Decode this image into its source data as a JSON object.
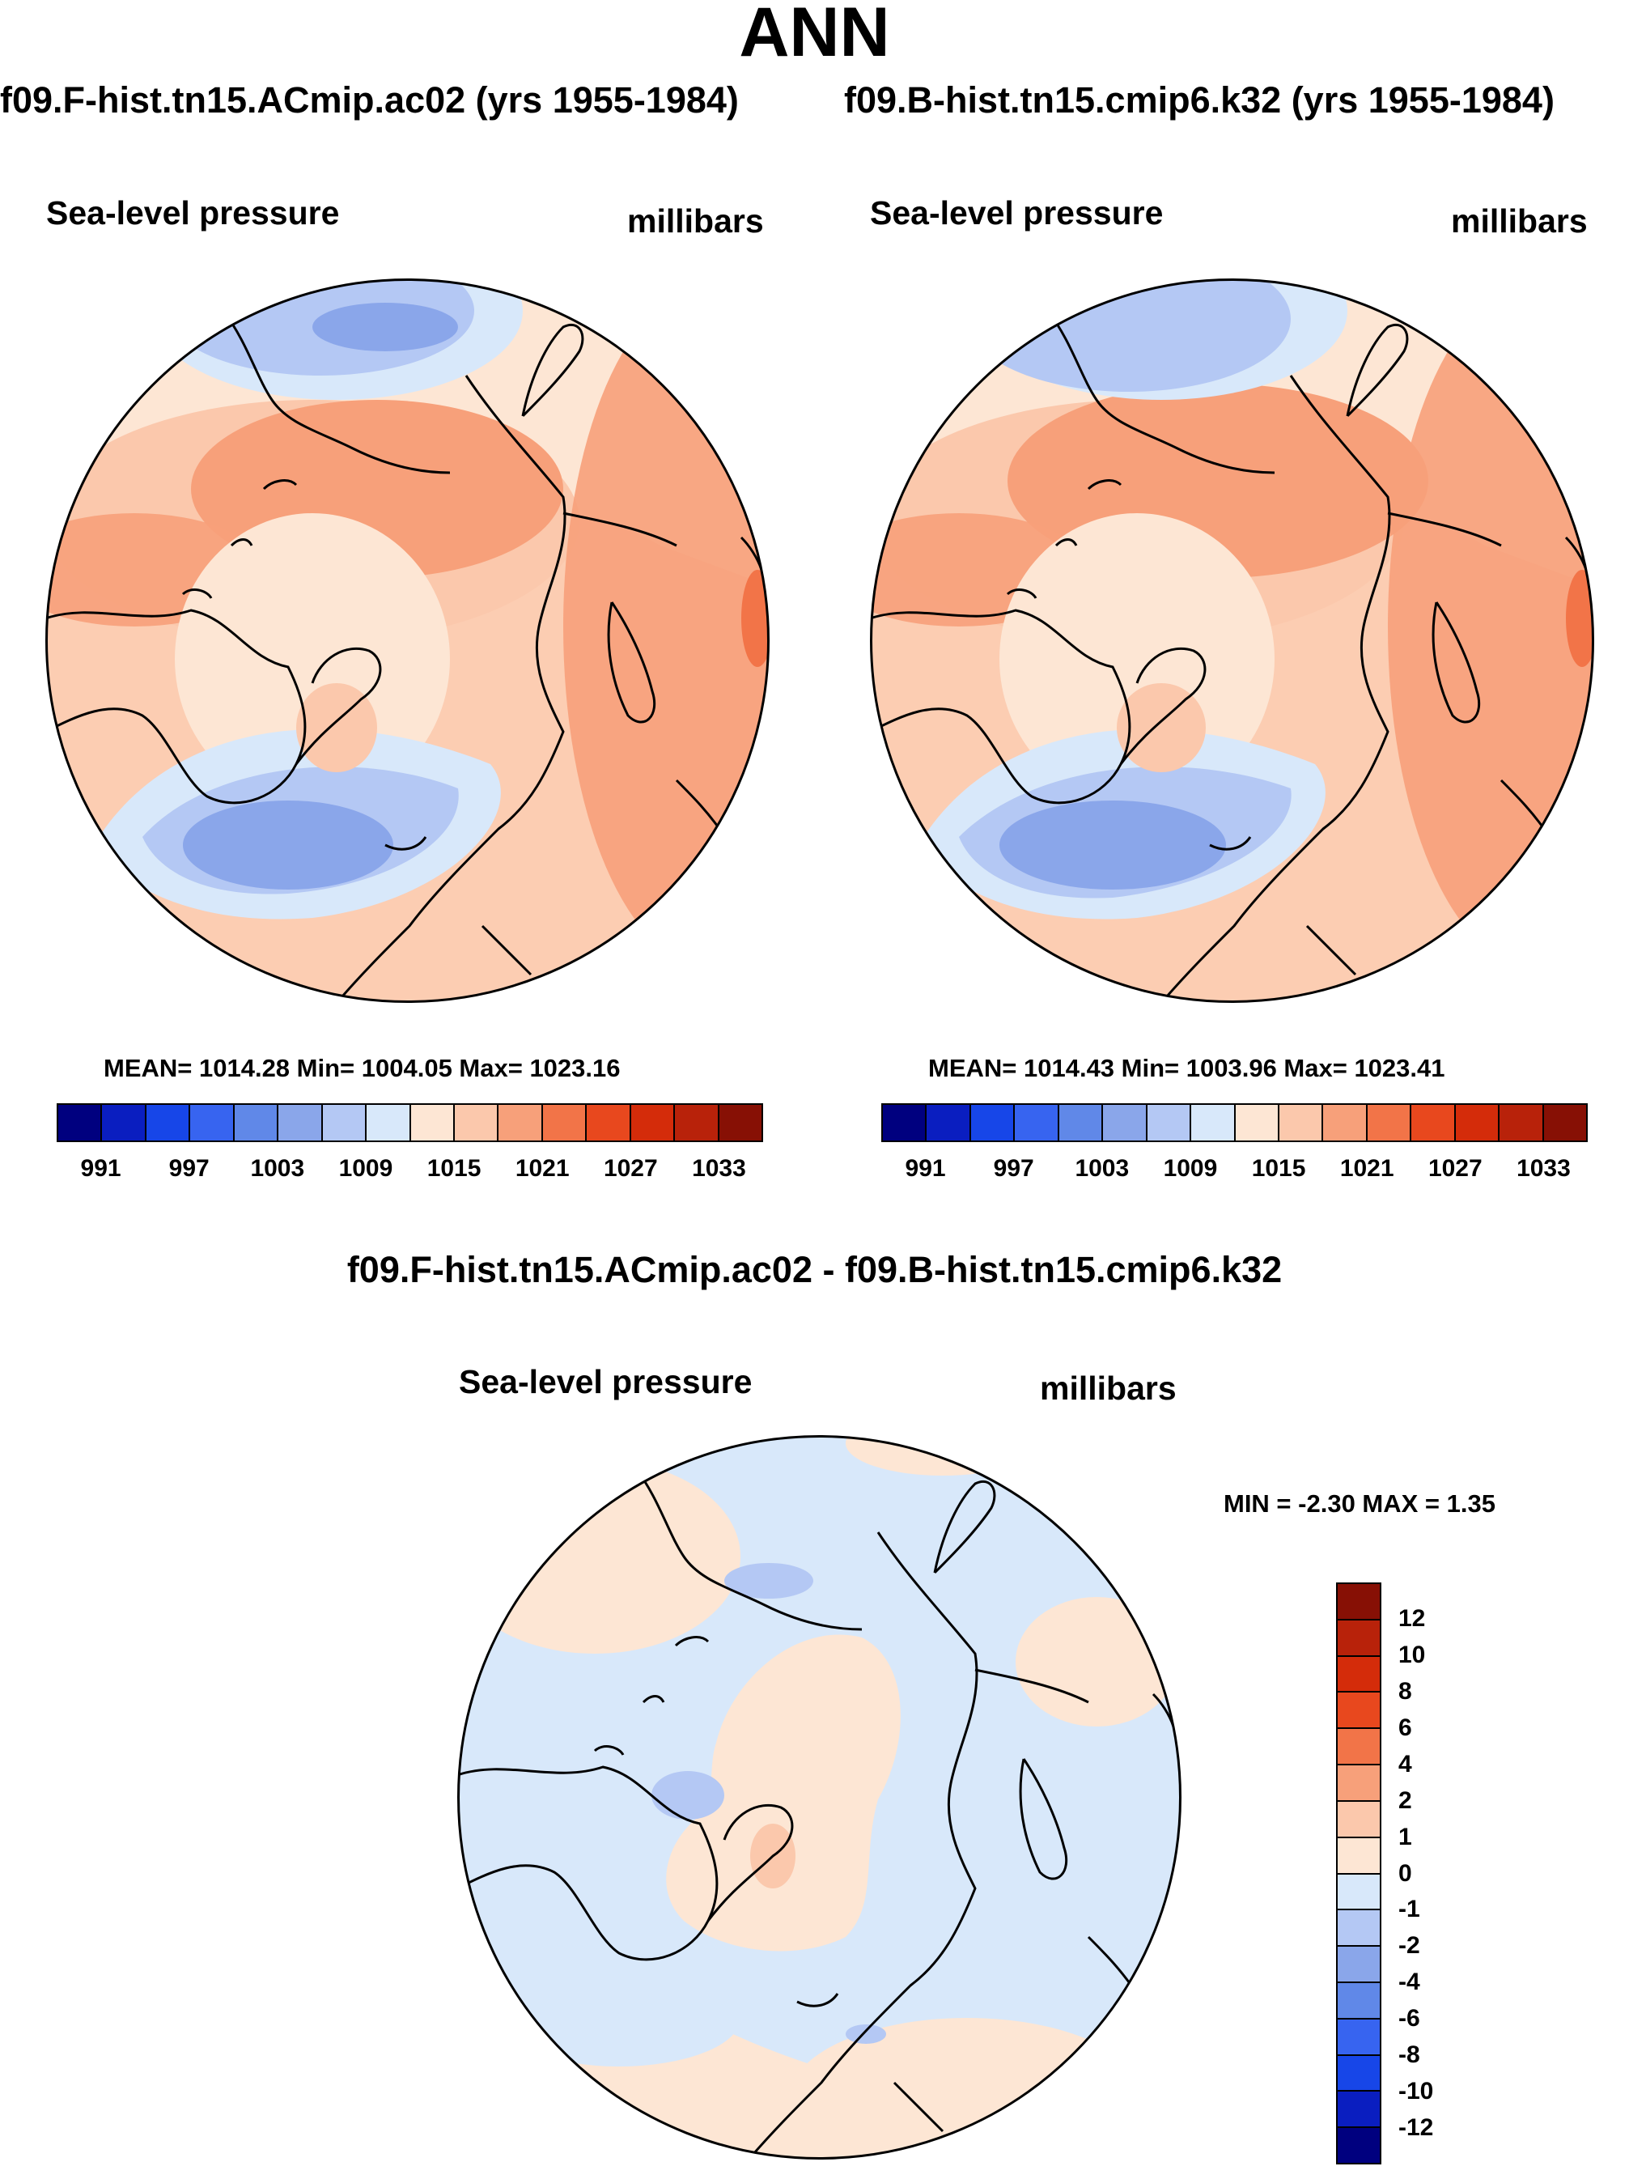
{
  "title": "ANN",
  "left_panel": {
    "case_title": "f09.F-hist.tn15.ACmip.ac02 (yrs 1955-1984)",
    "field": "Sea-level pressure",
    "units": "millibars",
    "stats": "MEAN= 1014.28  Min= 1004.05  Max= 1023.16"
  },
  "right_panel": {
    "case_title": "f09.B-hist.tn15.cmip6.k32 (yrs 1955-1984)",
    "field": "Sea-level pressure",
    "units": "millibars",
    "stats": "MEAN= 1014.43  Min= 1003.96  Max= 1023.41"
  },
  "diff_panel": {
    "case_title": "f09.F-hist.tn15.ACmip.ac02 - f09.B-hist.tn15.cmip6.k32",
    "field": "Sea-level pressure",
    "units": "millibars",
    "stats": "MIN =  -2.30 MAX =   1.35"
  },
  "colorbar_abs": {
    "colors": [
      "#00007f",
      "#0a1ec0",
      "#1746e8",
      "#3764f0",
      "#6088e8",
      "#8aa6ea",
      "#b4c8f4",
      "#d8e8fa",
      "#fde6d4",
      "#fbc8ac",
      "#f7a07a",
      "#f27448",
      "#e8481e",
      "#d42c0a",
      "#b8220a",
      "#871005"
    ],
    "labels": [
      "991",
      "997",
      "1003",
      "1009",
      "1015",
      "1021",
      "1027",
      "1033"
    ]
  },
  "colorbar_diff": {
    "colors": [
      "#871005",
      "#b8220a",
      "#d42c0a",
      "#e8481e",
      "#f27448",
      "#f7a07a",
      "#fbc8ac",
      "#fde6d4",
      "#d8e8fa",
      "#b4c8f4",
      "#8aa6ea",
      "#6088e8",
      "#3764f0",
      "#1746e8",
      "#0a1ec0",
      "#00007f"
    ],
    "labels": [
      "12",
      "10",
      "8",
      "6",
      "4",
      "2",
      "1",
      "0",
      "-1",
      "-2",
      "-4",
      "-6",
      "-8",
      "-10",
      "-12"
    ]
  },
  "chart_data": [
    {
      "type": "heatmap",
      "projection": "polar stereographic (north)",
      "title": "f09.F-hist.tn15.ACmip.ac02 (yrs 1955-1984)",
      "variable": "Sea-level pressure",
      "units": "millibars",
      "mean": 1014.28,
      "min": 1004.05,
      "max": 1023.16,
      "contour_levels": [
        991,
        994,
        997,
        1000,
        1003,
        1006,
        1009,
        1012,
        1015,
        1018,
        1021,
        1024,
        1027,
        1030,
        1033
      ]
    },
    {
      "type": "heatmap",
      "projection": "polar stereographic (north)",
      "title": "f09.B-hist.tn15.cmip6.k32 (yrs 1955-1984)",
      "variable": "Sea-level pressure",
      "units": "millibars",
      "mean": 1014.43,
      "min": 1003.96,
      "max": 1023.41,
      "contour_levels": [
        991,
        994,
        997,
        1000,
        1003,
        1006,
        1009,
        1012,
        1015,
        1018,
        1021,
        1024,
        1027,
        1030,
        1033
      ]
    },
    {
      "type": "heatmap",
      "projection": "polar stereographic (north)",
      "title": "f09.F-hist.tn15.ACmip.ac02 - f09.B-hist.tn15.cmip6.k32",
      "variable": "Sea-level pressure",
      "units": "millibars",
      "min": -2.3,
      "max": 1.35,
      "contour_levels": [
        -12,
        -10,
        -8,
        -6,
        -4,
        -2,
        -1,
        0,
        1,
        2,
        4,
        6,
        8,
        10,
        12
      ]
    }
  ]
}
